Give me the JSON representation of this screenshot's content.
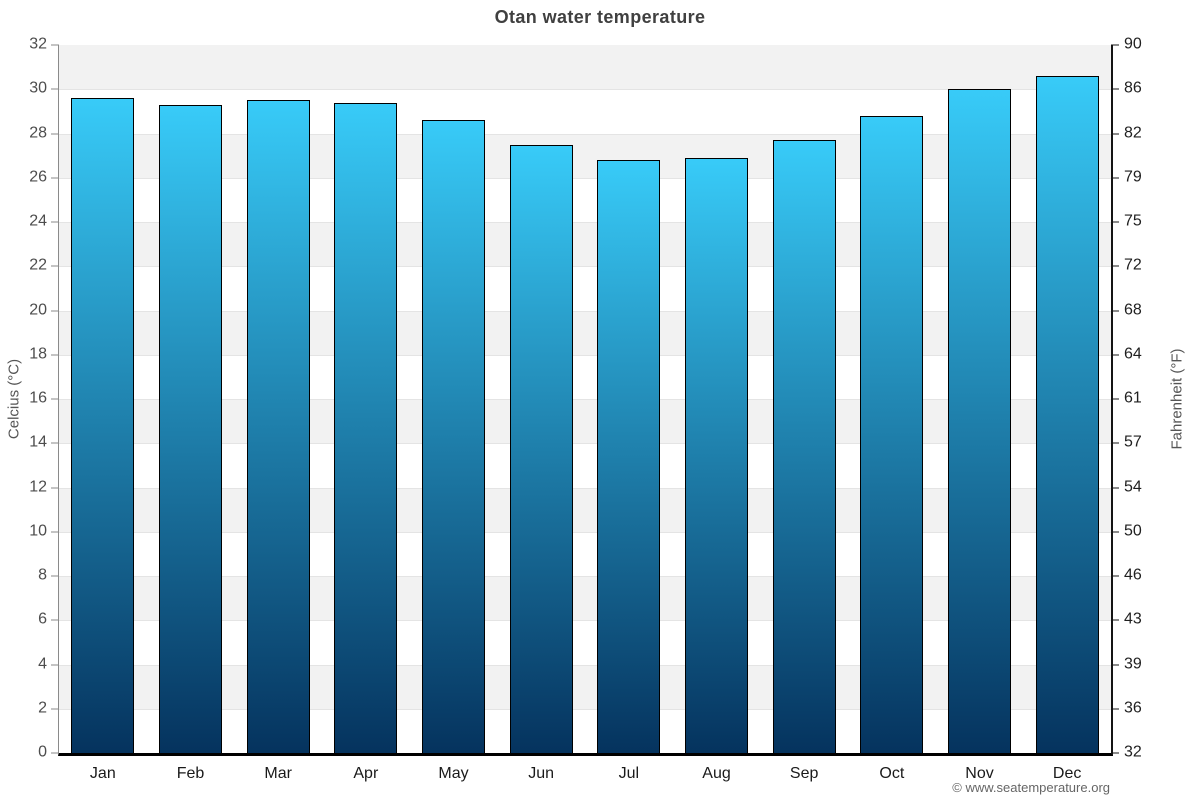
{
  "title": "Otan water temperature",
  "footer": "© www.seatemperature.org",
  "chart_data": {
    "type": "bar",
    "title": "Otan water temperature",
    "categories": [
      "Jan",
      "Feb",
      "Mar",
      "Apr",
      "May",
      "Jun",
      "Jul",
      "Aug",
      "Sep",
      "Oct",
      "Nov",
      "Dec"
    ],
    "values": [
      29.6,
      29.3,
      29.5,
      29.4,
      28.6,
      27.5,
      26.8,
      26.9,
      27.7,
      28.8,
      30.0,
      30.6
    ],
    "unit": "°C",
    "ylabel_left": "Celcius (°C)",
    "ylabel_right": "Fahrenheit (°F)",
    "ylim": [
      0,
      32
    ],
    "celsius_ticks_top_to_bottom": [
      32,
      30,
      28,
      26,
      24,
      22,
      20,
      18,
      16,
      14,
      12,
      10,
      8,
      6,
      4,
      2,
      0
    ],
    "fahrenheit_ticks_top_to_bottom": [
      90,
      86,
      82,
      79,
      75,
      72,
      68,
      64,
      61,
      57,
      54,
      50,
      46,
      43,
      39,
      36,
      32
    ],
    "grid": "horizontal-bands-alternating",
    "legend": "none",
    "colors": {
      "bar_gradient_top": "#38cbf8",
      "bar_gradient_bottom": "#05335e",
      "bar_border": "#000000",
      "band_gray": "#f2f2f2",
      "band_white": "#ffffff",
      "gridline": "#e4e4e4",
      "title_text": "#404040",
      "left_axis": "#8a8a8a",
      "right_axis": "#141414",
      "bottom_axis": "#000000",
      "left_tick_text": "#4d4d4d",
      "right_tick_text": "#1f1f1f",
      "month_text": "#1a1a1a",
      "footer_text": "#666666"
    }
  }
}
